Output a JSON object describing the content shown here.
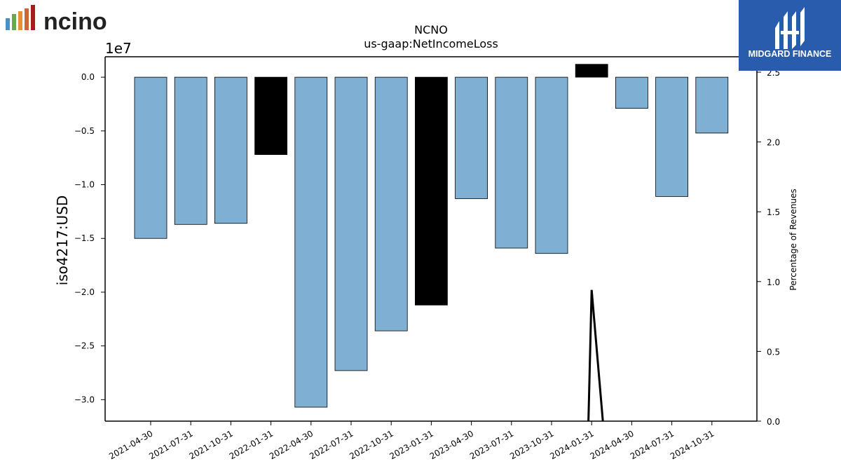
{
  "logos": {
    "ncino_text": "ncino",
    "ncino_bar_colors": [
      "#4a90c4",
      "#6aa84f",
      "#e69138",
      "#cc6633",
      "#a61c1c"
    ],
    "midgard_text": "MIDGARD FINANCE",
    "midgard_bg": "#2a5cad",
    "midgard_icon": "midgard-m-logo-icon"
  },
  "chart_data": {
    "type": "bar",
    "title": "NCNO",
    "subtitle": "us-gaap:NetIncomeLoss",
    "ylabel": "iso4217:USD",
    "y_offset_label": "1e7",
    "y2label": "Percentage of Revenues",
    "categories": [
      "2021-04-30",
      "2021-07-31",
      "2021-10-31",
      "2022-01-31",
      "2022-04-30",
      "2022-07-31",
      "2022-10-31",
      "2023-01-31",
      "2023-04-30",
      "2023-07-31",
      "2023-10-31",
      "2024-01-31",
      "2024-04-30",
      "2024-07-31",
      "2024-10-31"
    ],
    "values": [
      -15000000,
      -13700000,
      -13600000,
      -7200000,
      -30700000,
      -27300000,
      -23600000,
      -21200000,
      -11300000,
      -15900000,
      -16400000,
      1200000,
      -2900000,
      -11100000,
      -5200000
    ],
    "highlight": [
      false,
      false,
      false,
      true,
      false,
      false,
      false,
      true,
      false,
      false,
      false,
      true,
      false,
      false,
      false
    ],
    "bar_color": "#7fb0d4",
    "highlight_color": "#000000",
    "ylim": [
      -32000000,
      1900000
    ],
    "yticks": [
      0,
      -5000000,
      -10000000,
      -15000000,
      -20000000,
      -25000000,
      -30000000
    ],
    "ytick_labels": [
      "0.0",
      "−0.5",
      "−1.0",
      "−1.5",
      "−2.0",
      "−2.5",
      "−3.0"
    ],
    "y2lim": [
      0,
      2.5
    ],
    "y2ticks": [
      0,
      0.5,
      1.0,
      1.5,
      2.0,
      2.5
    ],
    "y2tick_labels": [
      "0.0",
      "0.5",
      "1.0",
      "1.5",
      "2.0",
      "2.5"
    ],
    "line_series": {
      "x_positions": [
        10.92,
        11.0,
        11.28
      ],
      "values": [
        0.0,
        0.94,
        0.0
      ],
      "color": "#000000"
    },
    "grid": false
  }
}
